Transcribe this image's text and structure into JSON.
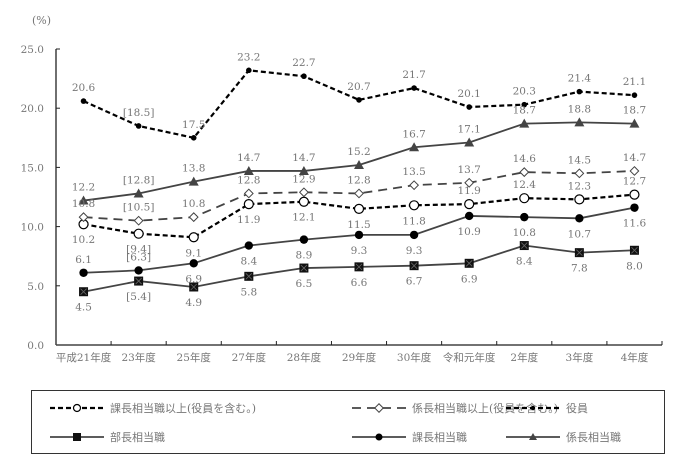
{
  "chart_data": {
    "type": "line",
    "unit_label": "(%)",
    "title": "",
    "xlabel": "",
    "ylabel": "(%)",
    "ylim": [
      0,
      25
    ],
    "yticks": [
      "0.0",
      "5.0",
      "10.0",
      "15.0",
      "20.0",
      "25.0"
    ],
    "grid": false,
    "legend_position": "bottom",
    "categories": [
      "平成21年度",
      "23年度",
      "25年度",
      "27年度",
      "28年度",
      "29年度",
      "30年度",
      "令和元年度",
      "2年度",
      "3年度",
      "4年度"
    ],
    "series": [
      {
        "name": "課長相当職以上(役員を含む。)",
        "style": "dashed-bold-open-circle",
        "values": [
          10.2,
          9.4,
          9.1,
          11.9,
          12.1,
          11.5,
          11.8,
          11.9,
          12.4,
          12.3,
          12.7
        ],
        "labels": [
          "10.2",
          "[9.4]",
          "9.1",
          "11.9",
          "12.1",
          "11.5",
          "11.8",
          "11.9",
          "12.4",
          "12.3",
          "12.7"
        ],
        "label_pos": [
          "below",
          "below",
          "below",
          "below",
          "below",
          "below",
          "below",
          "above",
          "above",
          "above",
          "above"
        ]
      },
      {
        "name": "係長相当職以上(役員を含む。)",
        "style": "dashed-open-diamond",
        "values": [
          10.8,
          10.5,
          10.8,
          12.8,
          12.9,
          12.8,
          13.5,
          13.7,
          14.6,
          14.5,
          14.7
        ],
        "labels": [
          "10.8",
          "[10.5]",
          "10.8",
          "12.8",
          "12.9",
          "12.8",
          "13.5",
          "13.7",
          "14.6",
          "14.5",
          "14.7"
        ],
        "label_pos": [
          "above",
          "above",
          "above",
          "above",
          "above",
          "above",
          "above",
          "above",
          "above",
          "above",
          "above"
        ]
      },
      {
        "name": "役員",
        "style": "dashed-bold-small-dot",
        "values": [
          20.6,
          18.5,
          17.5,
          23.2,
          22.7,
          20.7,
          21.7,
          20.1,
          20.3,
          21.4,
          21.1
        ],
        "labels": [
          "20.6",
          "[18.5]",
          "17.5",
          "23.2",
          "22.7",
          "20.7",
          "21.7",
          "20.1",
          "20.3",
          "21.4",
          "21.1"
        ],
        "label_pos": [
          "above",
          "above",
          "above",
          "above",
          "above",
          "above",
          "above",
          "above",
          "above",
          "above",
          "above"
        ]
      },
      {
        "name": "部長相当職",
        "style": "solid-filled-square",
        "values": [
          4.5,
          5.4,
          4.9,
          5.8,
          6.5,
          6.6,
          6.7,
          6.9,
          8.4,
          7.8,
          8.0
        ],
        "labels": [
          "4.5",
          "[5.4]",
          "4.9",
          "5.8",
          "6.5",
          "6.6",
          "6.7",
          "6.9",
          "8.4",
          "7.8",
          "8.0"
        ],
        "label_pos": [
          "below",
          "below",
          "below",
          "below",
          "below",
          "below",
          "below",
          "below",
          "below",
          "below",
          "below"
        ]
      },
      {
        "name": "課長相当職",
        "style": "solid-filled-circle",
        "values": [
          6.1,
          6.3,
          6.9,
          8.4,
          8.9,
          9.3,
          9.3,
          10.9,
          10.8,
          10.7,
          11.6
        ],
        "labels": [
          "6.1",
          "[6.3]",
          "6.9",
          "8.4",
          "8.9",
          "9.3",
          "9.3",
          "10.9",
          "10.8",
          "10.7",
          "11.6"
        ],
        "label_pos": [
          "above",
          "above",
          "below",
          "below",
          "below",
          "below",
          "below",
          "below",
          "below",
          "below",
          "below"
        ]
      },
      {
        "name": "係長相当職",
        "style": "solid-filled-triangle",
        "values": [
          12.2,
          12.8,
          13.8,
          14.7,
          14.7,
          15.2,
          16.7,
          17.1,
          18.7,
          18.8,
          18.7
        ],
        "labels": [
          "12.2",
          "[12.8]",
          "13.8",
          "14.7",
          "14.7",
          "15.2",
          "16.7",
          "17.1",
          "18.7",
          "18.8",
          "18.7"
        ],
        "label_pos": [
          "above",
          "above",
          "above",
          "above",
          "above",
          "above",
          "above",
          "above",
          "above",
          "above",
          "above"
        ]
      }
    ]
  },
  "legend": {
    "items": [
      {
        "label": "課長相当職以上(役員を含む。)"
      },
      {
        "label": "係長相当職以上(役員を含む。)"
      },
      {
        "label": "役員"
      },
      {
        "label": "部長相当職"
      },
      {
        "label": "課長相当職"
      },
      {
        "label": "係長相当職"
      }
    ]
  }
}
